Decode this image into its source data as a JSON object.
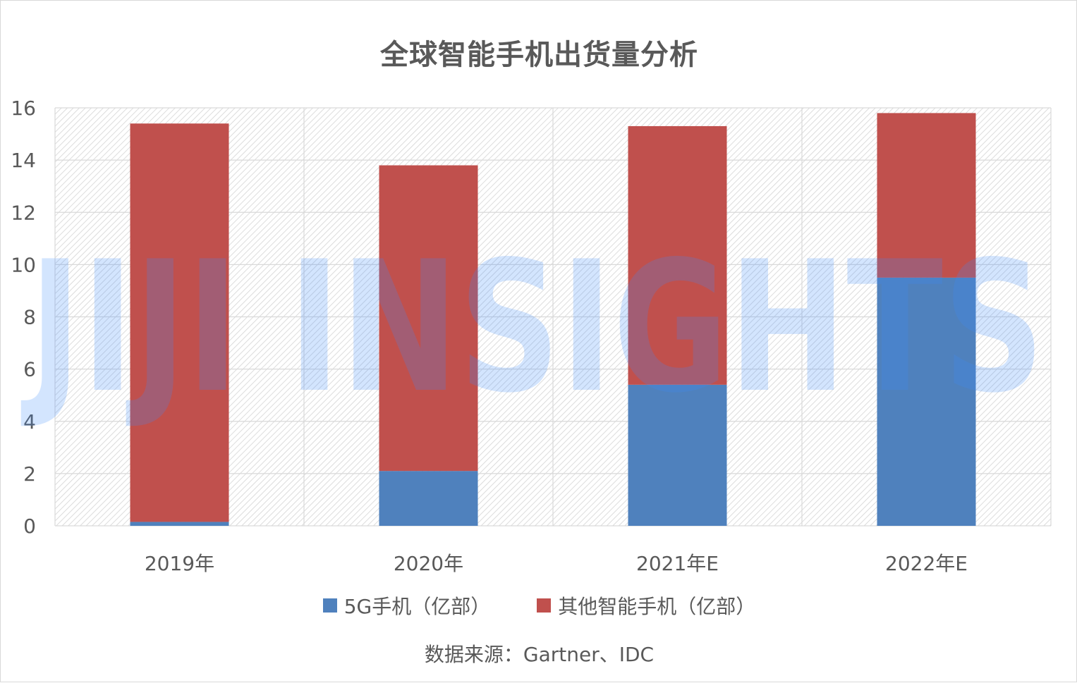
{
  "chart_data": {
    "type": "bar",
    "stacked": true,
    "title": "全球智能手机出货量分析",
    "categories": [
      "2019年",
      "2020年",
      "2021年E",
      "2022年E"
    ],
    "series": [
      {
        "name": "5G手机（亿部）",
        "color": "#4f81bd",
        "values": [
          0.15,
          2.1,
          5.4,
          9.5
        ]
      },
      {
        "name": "其他智能手机（亿部）",
        "color": "#c0504d",
        "values": [
          15.25,
          11.7,
          9.9,
          6.3
        ]
      }
    ],
    "ylim": [
      0,
      16
    ],
    "yticks": [
      "0",
      "2",
      "4",
      "6",
      "8",
      "10",
      "12",
      "14",
      "16"
    ],
    "xlabel": "",
    "ylabel": "",
    "grid": true,
    "legend_position": "bottom",
    "source": "数据来源：Gartner、IDC"
  },
  "watermark": "JIJI INSIGHTS"
}
